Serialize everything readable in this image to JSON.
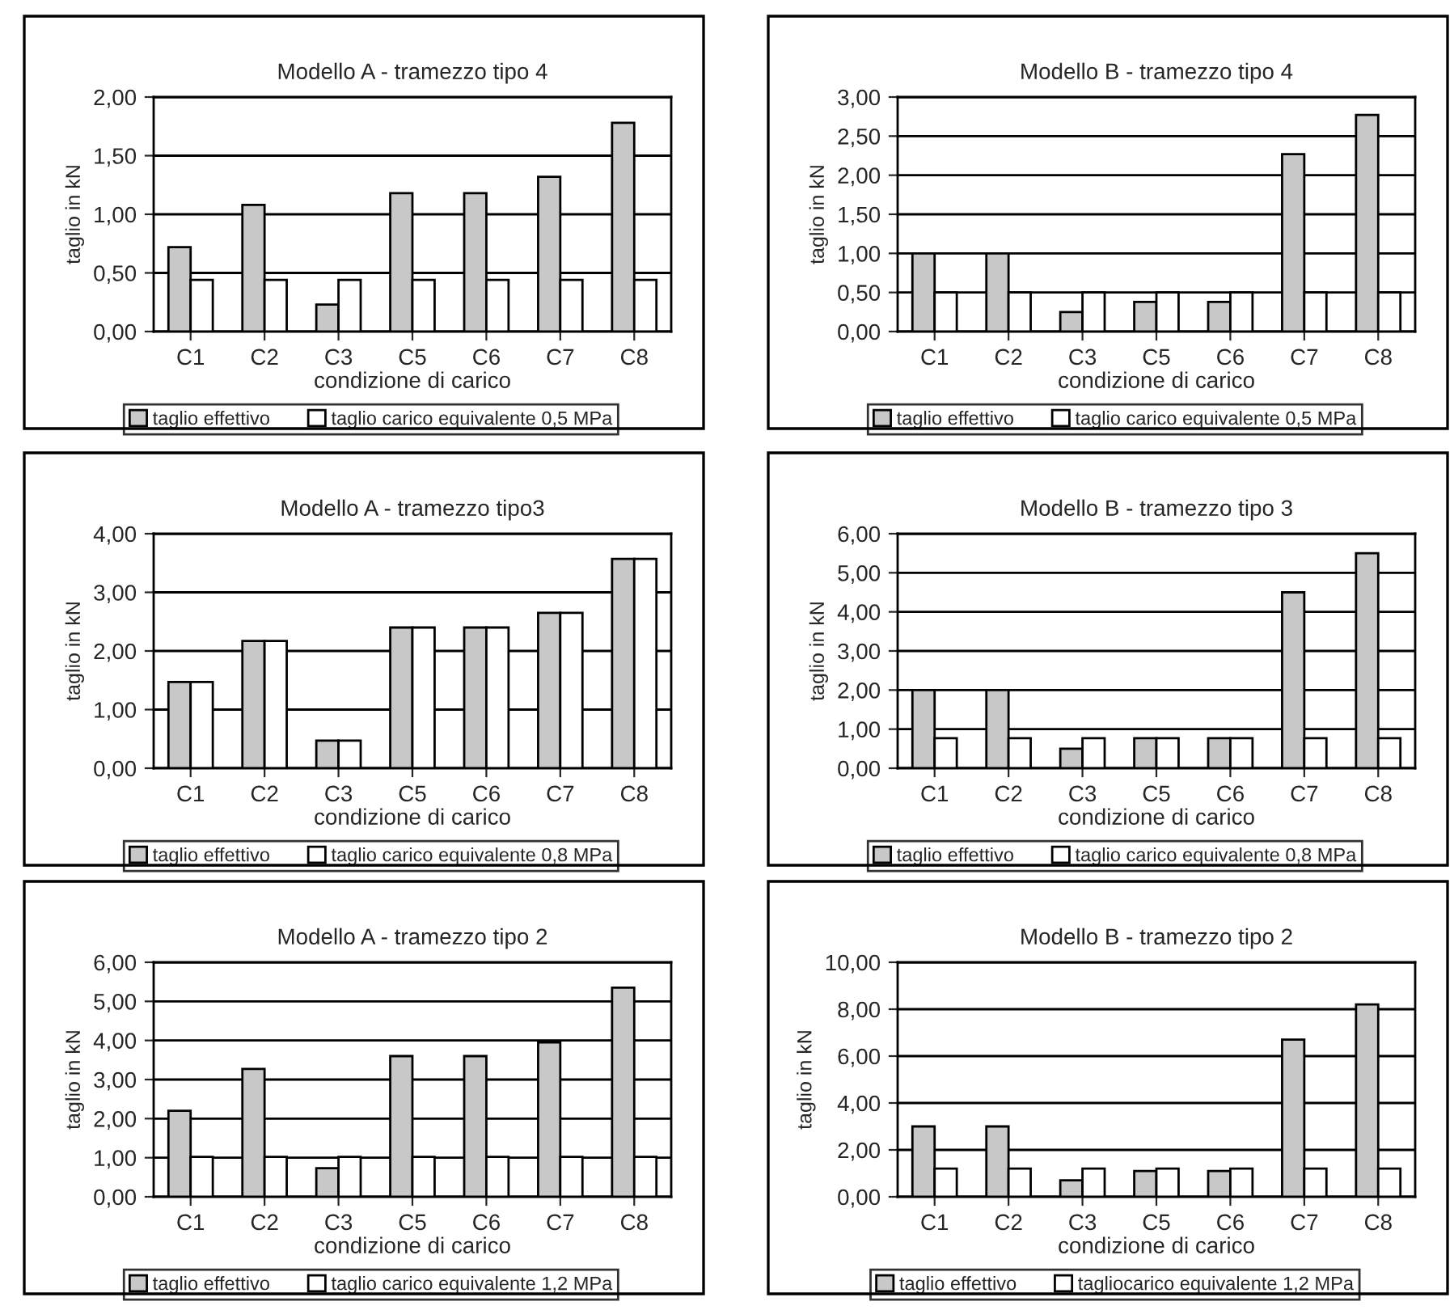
{
  "chart_data": [
    {
      "type": "bar",
      "title": "Modello A - tramezzo tipo 4",
      "xlabel": "condizione di carico",
      "ylabel": "taglio in kN",
      "categories": [
        "C1",
        "C2",
        "C3",
        "C5",
        "C6",
        "C7",
        "C8"
      ],
      "series": [
        {
          "name": "taglio effettivo",
          "color": "#c8c8c8",
          "values": [
            0.72,
            1.08,
            0.23,
            1.18,
            1.18,
            1.32,
            1.78
          ]
        },
        {
          "name": "taglio carico equivalente 0,5 MPa",
          "color": "#ffffff",
          "values": [
            0.44,
            0.44,
            0.44,
            0.44,
            0.44,
            0.44,
            0.44
          ]
        }
      ],
      "ylim": [
        0,
        2
      ],
      "yticks": [
        {
          "value": 0,
          "label": "0,00"
        },
        {
          "value": 0.5,
          "label": "0,50"
        },
        {
          "value": 1,
          "label": "1,00"
        },
        {
          "value": 1.5,
          "label": "1,50"
        },
        {
          "value": 2,
          "label": "2,00"
        }
      ],
      "grid": "y",
      "legend": "bottom"
    },
    {
      "type": "bar",
      "title": "Modello B - tramezzo tipo 4",
      "xlabel": "condizione di carico",
      "ylabel": "taglio in kN",
      "categories": [
        "C1",
        "C2",
        "C3",
        "C5",
        "C6",
        "C7",
        "C8"
      ],
      "series": [
        {
          "name": "taglio effettivo",
          "color": "#c8c8c8",
          "values": [
            1.0,
            1.0,
            0.25,
            0.38,
            0.38,
            2.27,
            2.77
          ]
        },
        {
          "name": "taglio carico equivalente 0,5 MPa",
          "color": "#ffffff",
          "values": [
            0.5,
            0.5,
            0.5,
            0.5,
            0.5,
            0.5,
            0.5
          ]
        }
      ],
      "ylim": [
        0,
        3
      ],
      "yticks": [
        {
          "value": 0,
          "label": "0,00"
        },
        {
          "value": 0.5,
          "label": "0,50"
        },
        {
          "value": 1,
          "label": "1,00"
        },
        {
          "value": 1.5,
          "label": "1,50"
        },
        {
          "value": 2,
          "label": "2,00"
        },
        {
          "value": 2.5,
          "label": "2,50"
        },
        {
          "value": 3,
          "label": "3,00"
        }
      ],
      "grid": "y",
      "legend": "bottom"
    },
    {
      "type": "bar",
      "title": "Modello A - tramezzo tipo3",
      "xlabel": "condizione di carico",
      "ylabel": "taglio in kN",
      "categories": [
        "C1",
        "C2",
        "C3",
        "C5",
        "C6",
        "C7",
        "C8"
      ],
      "series": [
        {
          "name": "taglio effettivo",
          "color": "#c8c8c8",
          "values": [
            1.47,
            2.17,
            0.47,
            2.4,
            2.4,
            2.65,
            3.57
          ]
        },
        {
          "name": "taglio carico equivalente 0,8 MPa",
          "color": "#ffffff",
          "values": [
            1.47,
            2.17,
            0.47,
            2.4,
            2.4,
            2.65,
            3.57
          ]
        }
      ],
      "ylim": [
        0,
        4
      ],
      "yticks": [
        {
          "value": 0,
          "label": "0,00"
        },
        {
          "value": 1,
          "label": "1,00"
        },
        {
          "value": 2,
          "label": "2,00"
        },
        {
          "value": 3,
          "label": "3,00"
        },
        {
          "value": 4,
          "label": "4,00"
        }
      ],
      "grid": "y",
      "legend": "bottom"
    },
    {
      "type": "bar",
      "title": "Modello B - tramezzo tipo 3",
      "xlabel": "condizione di carico",
      "ylabel": "taglio in kN",
      "categories": [
        "C1",
        "C2",
        "C3",
        "C5",
        "C6",
        "C7",
        "C8"
      ],
      "series": [
        {
          "name": "taglio effettivo",
          "color": "#c8c8c8",
          "values": [
            2.0,
            2.0,
            0.5,
            0.77,
            0.77,
            4.5,
            5.5
          ]
        },
        {
          "name": "taglio carico equivalente 0,8 MPa",
          "color": "#ffffff",
          "values": [
            0.77,
            0.77,
            0.77,
            0.77,
            0.77,
            0.77,
            0.77
          ]
        }
      ],
      "ylim": [
        0,
        6
      ],
      "yticks": [
        {
          "value": 0,
          "label": "0,00"
        },
        {
          "value": 1,
          "label": "1,00"
        },
        {
          "value": 2,
          "label": "2,00"
        },
        {
          "value": 3,
          "label": "3,00"
        },
        {
          "value": 4,
          "label": "4,00"
        },
        {
          "value": 5,
          "label": "5,00"
        },
        {
          "value": 6,
          "label": "6,00"
        }
      ],
      "grid": "y",
      "legend": "bottom"
    },
    {
      "type": "bar",
      "title": "Modello A - tramezzo tipo 2",
      "xlabel": "condizione di carico",
      "ylabel": "taglio in kN",
      "categories": [
        "C1",
        "C2",
        "C3",
        "C5",
        "C6",
        "C7",
        "C8"
      ],
      "series": [
        {
          "name": "taglio effettivo",
          "color": "#c8c8c8",
          "values": [
            2.2,
            3.27,
            0.73,
            3.6,
            3.6,
            3.95,
            5.35
          ]
        },
        {
          "name": "taglio carico equivalente 1,2 MPa",
          "color": "#ffffff",
          "values": [
            1.02,
            1.02,
            1.02,
            1.02,
            1.02,
            1.02,
            1.02
          ]
        }
      ],
      "ylim": [
        0,
        6
      ],
      "yticks": [
        {
          "value": 0,
          "label": "0,00"
        },
        {
          "value": 1,
          "label": "1,00"
        },
        {
          "value": 2,
          "label": "2,00"
        },
        {
          "value": 3,
          "label": "3,00"
        },
        {
          "value": 4,
          "label": "4,00"
        },
        {
          "value": 5,
          "label": "5,00"
        },
        {
          "value": 6,
          "label": "6,00"
        }
      ],
      "grid": "y",
      "legend": "bottom"
    },
    {
      "type": "bar",
      "title": "Modello B - tramezzo tipo 2",
      "xlabel": "condizione di carico",
      "ylabel": "taglio in kN",
      "categories": [
        "C1",
        "C2",
        "C3",
        "C5",
        "C6",
        "C7",
        "C8"
      ],
      "series": [
        {
          "name": "taglio effettivo",
          "color": "#c8c8c8",
          "values": [
            3.0,
            3.0,
            0.7,
            1.1,
            1.1,
            6.7,
            8.2
          ]
        },
        {
          "name": "tagliocarico equivalente 1,2 MPa",
          "color": "#ffffff",
          "values": [
            1.2,
            1.2,
            1.2,
            1.2,
            1.2,
            1.2,
            1.2
          ]
        }
      ],
      "ylim": [
        0,
        10
      ],
      "yticks": [
        {
          "value": 0,
          "label": "0,00"
        },
        {
          "value": 2,
          "label": "2,00"
        },
        {
          "value": 4,
          "label": "4,00"
        },
        {
          "value": 6,
          "label": "6,00"
        },
        {
          "value": 8,
          "label": "8,00"
        },
        {
          "value": 10,
          "label": "10,00"
        }
      ],
      "grid": "y",
      "legend": "bottom"
    }
  ]
}
